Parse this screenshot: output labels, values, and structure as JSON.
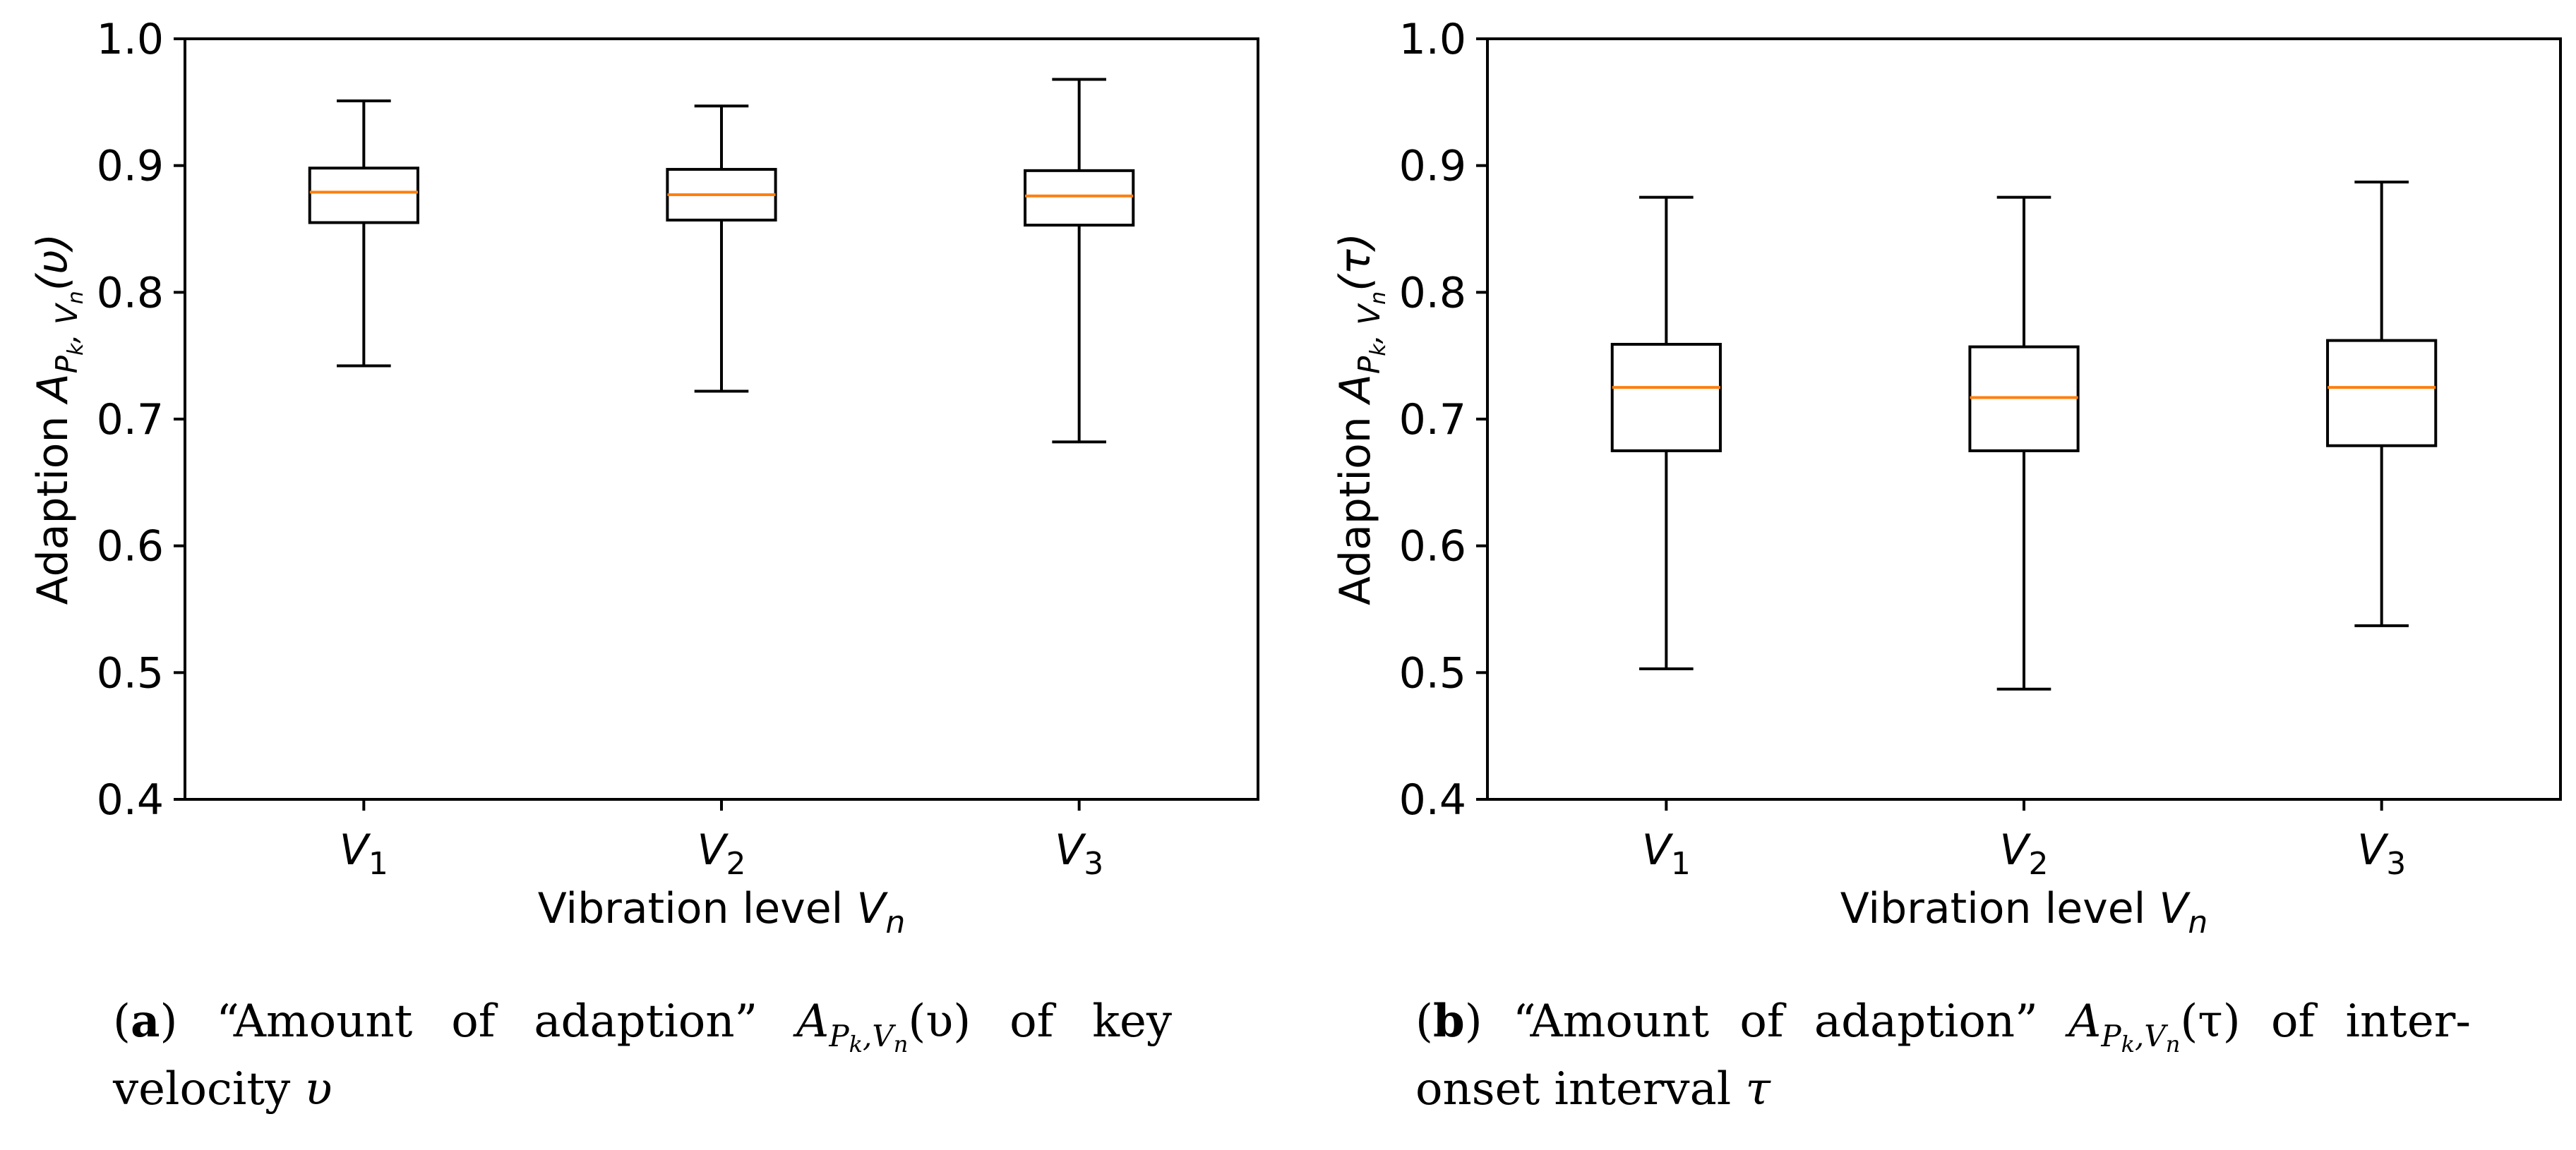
{
  "chart_data": [
    {
      "type": "box",
      "panel": "a",
      "title": "",
      "xlabel": "Vibration level V_n",
      "ylabel": "Adaption A_{P_k,V_n}(υ)",
      "xlabel_parts": {
        "text": "Vibration level ",
        "symbol": "V",
        "sub": "n"
      },
      "ylabel_parts": {
        "text": "Adaption ",
        "symbol": "A",
        "sub": "P",
        "subsub": "k",
        "sub_after": ", V",
        "subsub2": "n",
        "arg": "(υ)"
      },
      "categories": [
        {
          "symbol": "V",
          "sub": "1"
        },
        {
          "symbol": "V",
          "sub": "2"
        },
        {
          "symbol": "V",
          "sub": "3"
        }
      ],
      "ylim": [
        0.4,
        1.0
      ],
      "yticks": [
        "0.4",
        "0.5",
        "0.6",
        "0.7",
        "0.8",
        "0.9",
        "1.0"
      ],
      "boxes": [
        {
          "whislo": 0.742,
          "q1": 0.855,
          "med": 0.879,
          "q3": 0.898,
          "whishi": 0.951
        },
        {
          "whislo": 0.722,
          "q1": 0.857,
          "med": 0.877,
          "q3": 0.897,
          "whishi": 0.947
        },
        {
          "whislo": 0.682,
          "q1": 0.853,
          "med": 0.876,
          "q3": 0.896,
          "whishi": 0.968
        }
      ],
      "grid": false,
      "box_color": "#000000",
      "median_color": "#ff7f0e"
    },
    {
      "type": "box",
      "panel": "b",
      "title": "",
      "xlabel": "Vibration level V_n",
      "ylabel": "Adaption A_{P_k,V_n}(τ)",
      "xlabel_parts": {
        "text": "Vibration level ",
        "symbol": "V",
        "sub": "n"
      },
      "ylabel_parts": {
        "text": "Adaption ",
        "symbol": "A",
        "sub": "P",
        "subsub": "k",
        "sub_after": ", V",
        "subsub2": "n",
        "arg": "(τ)"
      },
      "categories": [
        {
          "symbol": "V",
          "sub": "1"
        },
        {
          "symbol": "V",
          "sub": "2"
        },
        {
          "symbol": "V",
          "sub": "3"
        }
      ],
      "ylim": [
        0.4,
        1.0
      ],
      "yticks": [
        "0.4",
        "0.5",
        "0.6",
        "0.7",
        "0.8",
        "0.9",
        "1.0"
      ],
      "boxes": [
        {
          "whislo": 0.503,
          "q1": 0.675,
          "med": 0.725,
          "q3": 0.759,
          "whishi": 0.875
        },
        {
          "whislo": 0.487,
          "q1": 0.675,
          "med": 0.717,
          "q3": 0.757,
          "whishi": 0.875
        },
        {
          "whislo": 0.537,
          "q1": 0.679,
          "med": 0.725,
          "q3": 0.762,
          "whishi": 0.887
        }
      ],
      "grid": false,
      "box_color": "#000000",
      "median_color": "#ff7f0e"
    }
  ],
  "captions": {
    "a": {
      "label": "a",
      "text_before": " “Amount of adaption” ",
      "math_symbol": "A",
      "math_sub": "P",
      "math_subsub": "k",
      "math_sub_after": ",V",
      "math_subsub2": "n",
      "math_arg": "(υ)",
      "text_after": " of key velocity ",
      "var": "υ"
    },
    "b": {
      "label": "b",
      "text_before": " “Amount of adaption” ",
      "math_symbol": "A",
      "math_sub": "P",
      "math_subsub": "k",
      "math_sub_after": ",V",
      "math_subsub2": "n",
      "math_arg": "(τ)",
      "text_after": " of inter-onset interval ",
      "var": "τ"
    }
  }
}
